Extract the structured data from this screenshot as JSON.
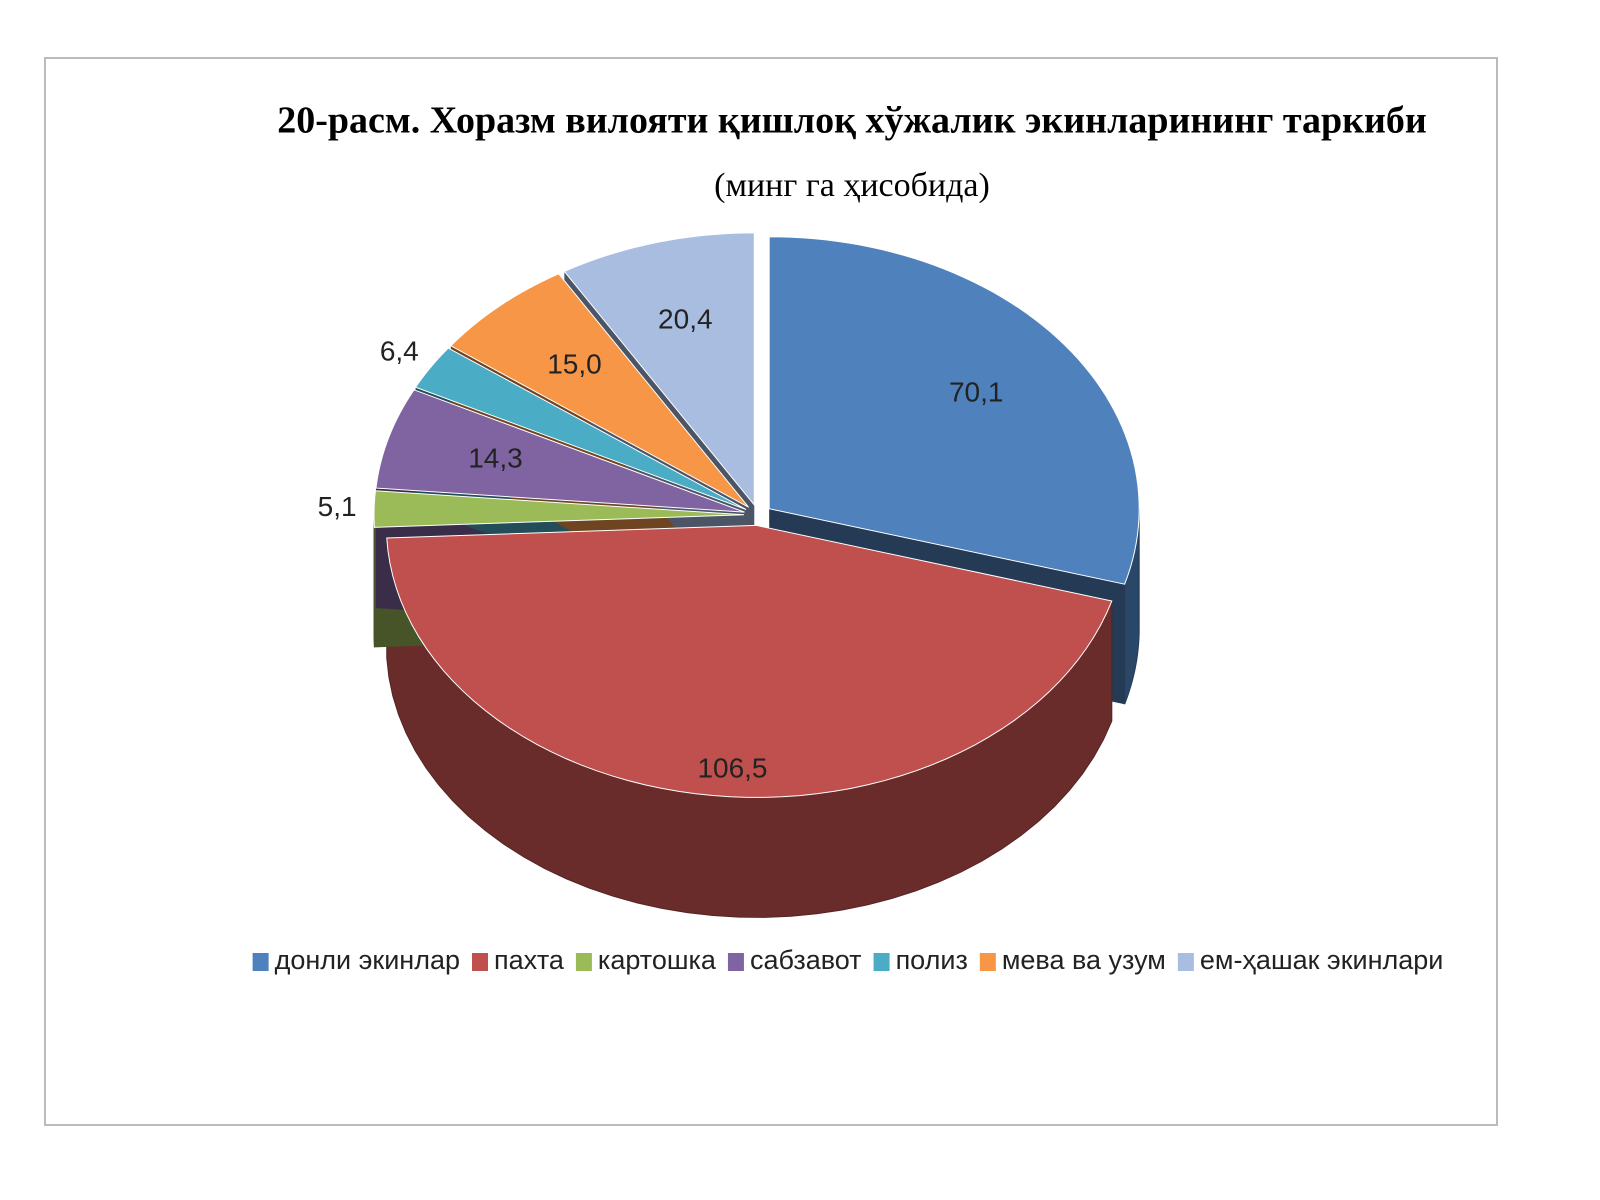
{
  "chart_data": {
    "type": "pie",
    "title": "20-расм. Хоразм вилояти қишлоқ хўжалик экинларининг  таркиби",
    "subtitle": "(минг га ҳисобида)",
    "categories": [
      "донли экинлар",
      "пахта",
      "картошка",
      "сабзавот",
      "полиз",
      "мева ва узум",
      "ем-ҳашак экинлари"
    ],
    "values": [
      70.1,
      106.5,
      5.1,
      14.3,
      6.4,
      15.0,
      20.4
    ],
    "value_labels": [
      "70,1",
      "106,5",
      "5,1",
      "14,3",
      "6,4",
      "15,0",
      "20,4"
    ],
    "colors": [
      "#4f81bd",
      "#c0504d",
      "#9bbb59",
      "#8064a2",
      "#4bacc6",
      "#f79646",
      "#a9bde0"
    ]
  }
}
